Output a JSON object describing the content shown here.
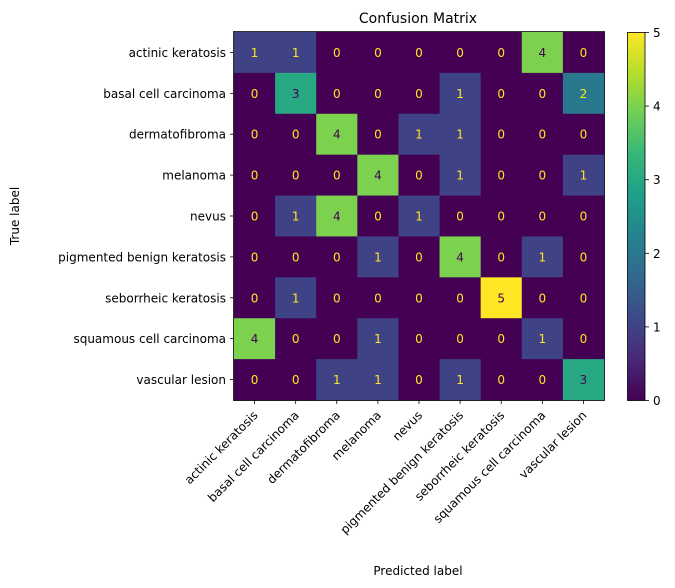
{
  "chart_data": {
    "type": "heatmap",
    "title": "Confusion Matrix",
    "xlabel": "Predicted label",
    "ylabel": "True label",
    "labels": [
      "actinic keratosis",
      "basal cell carcinoma",
      "dermatofibroma",
      "melanoma",
      "nevus",
      "pigmented benign keratosis",
      "seborrheic keratosis",
      "squamous cell carcinoma",
      "vascular lesion"
    ],
    "matrix": [
      [
        1,
        1,
        0,
        0,
        0,
        0,
        0,
        4,
        0
      ],
      [
        0,
        3,
        0,
        0,
        0,
        1,
        0,
        0,
        2
      ],
      [
        0,
        0,
        4,
        0,
        1,
        1,
        0,
        0,
        0
      ],
      [
        0,
        0,
        0,
        4,
        0,
        1,
        0,
        0,
        1
      ],
      [
        0,
        1,
        4,
        0,
        1,
        0,
        0,
        0,
        0
      ],
      [
        0,
        0,
        0,
        1,
        0,
        4,
        0,
        1,
        0
      ],
      [
        0,
        1,
        0,
        0,
        0,
        0,
        5,
        0,
        0
      ],
      [
        4,
        0,
        0,
        1,
        0,
        0,
        0,
        1,
        0
      ],
      [
        0,
        0,
        1,
        1,
        0,
        1,
        0,
        0,
        3
      ]
    ],
    "colormap": "viridis",
    "vmin": 0,
    "vmax": 5,
    "colorbar_ticks": [
      0,
      1,
      2,
      3,
      4,
      5
    ]
  }
}
